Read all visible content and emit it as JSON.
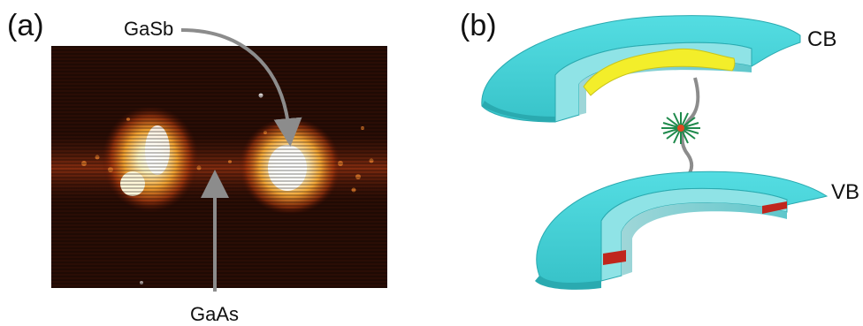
{
  "panel_a": {
    "label": "(a)",
    "annotations": {
      "top": "GaSb",
      "bottom": "GaAs"
    }
  },
  "panel_b": {
    "label": "(b)",
    "bands": {
      "conduction": "CB",
      "valence": "VB"
    }
  },
  "colors": {
    "arrow": "#8c8c8c",
    "ring_cyan": "#4fd3d8",
    "ring_cyan_dark": "#2aaab0",
    "electron_wave": "#f3ee2a",
    "valence_cut": "#c0261d",
    "photon_star": "#1f8a4c",
    "micrograph_bg": "#2a0d05"
  }
}
